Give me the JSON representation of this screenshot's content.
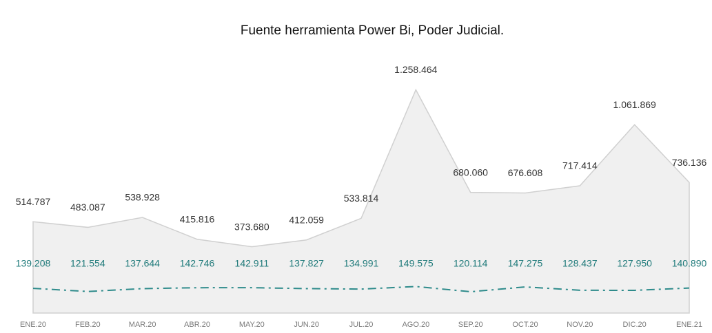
{
  "chart_data": {
    "type": "line",
    "title": "Fuente herramienta Power Bi, Poder Judicial.",
    "categories": [
      "ENE.20",
      "FEB.20",
      "MAR.20",
      "ABR.20",
      "MAY.20",
      "JUN.20",
      "JUL.20",
      "AGO.20",
      "SEP.20",
      "OCT.20",
      "NOV.20",
      "DIC.20",
      "ENE.21"
    ],
    "series": [
      {
        "color": "#d0d0d0",
        "fill": "#f0f0f0",
        "values": [
          514787,
          483087,
          538928,
          415816,
          373680,
          412059,
          533814,
          1258464,
          680060,
          676608,
          717414,
          1061869,
          736136
        ],
        "value_labels": [
          "514.787",
          "483.087",
          "538.928",
          "415.816",
          "373.680",
          "412.059",
          "533.814",
          "1.258.464",
          "680.060",
          "676.608",
          "717.414",
          "1.061.869",
          "736.136"
        ]
      },
      {
        "color": "#2e8b8b",
        "values": [
          139208,
          121554,
          137644,
          142746,
          142911,
          137827,
          134991,
          149575,
          120114,
          147275,
          128437,
          127950,
          140890
        ],
        "value_labels": [
          "139.208",
          "121.554",
          "137.644",
          "142.746",
          "142.911",
          "137.827",
          "134.991",
          "149.575",
          "120.114",
          "147.275",
          "128.437",
          "127.950",
          "140.890"
        ]
      }
    ],
    "ylim": [
      0,
      1400000
    ]
  }
}
